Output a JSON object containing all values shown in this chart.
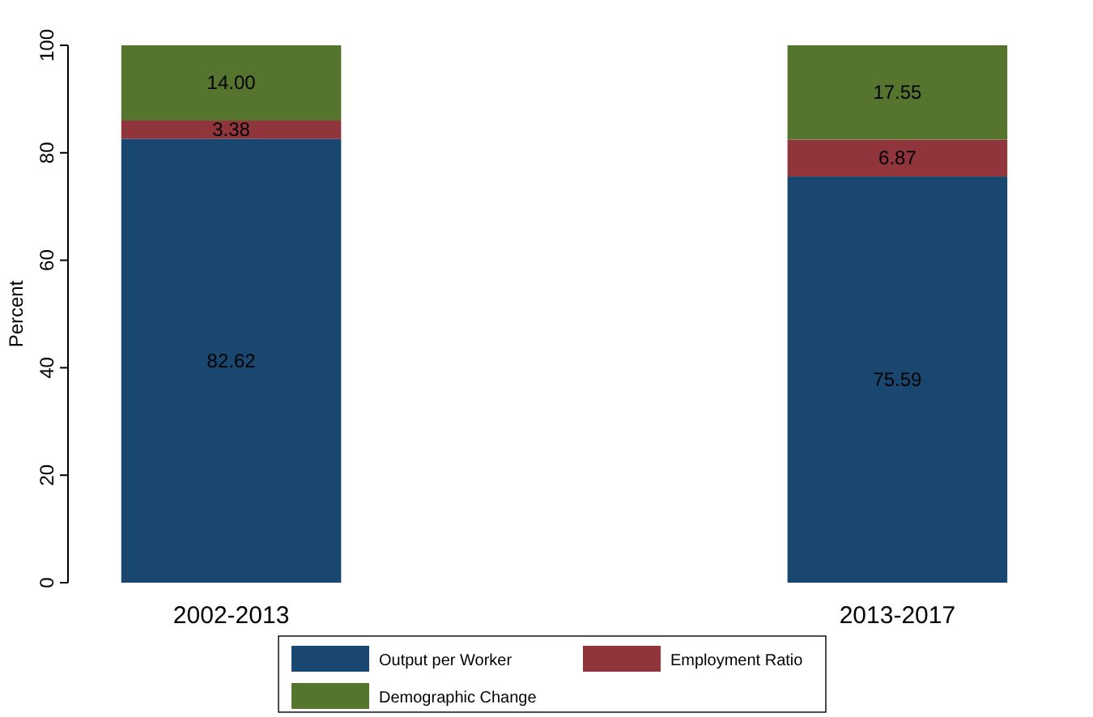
{
  "chart_data": {
    "type": "bar",
    "stacked": true,
    "ylabel": "Percent",
    "categories": [
      "2002-2013",
      "2013-2017"
    ],
    "series": [
      {
        "name": "Output per Worker",
        "color": "#1a476f",
        "values": [
          82.62,
          75.59
        ],
        "value_labels": [
          "82.62",
          "75.59"
        ]
      },
      {
        "name": "Employment Ratio",
        "color": "#90353b",
        "values": [
          3.38,
          6.87
        ],
        "value_labels": [
          "3.38",
          "6.87"
        ]
      },
      {
        "name": "Demographic Change",
        "color": "#55752f",
        "values": [
          14.0,
          17.55
        ],
        "value_labels": [
          "14.00",
          "17.55"
        ]
      }
    ],
    "ylim": [
      0,
      100
    ],
    "yticks": [
      0,
      20,
      40,
      60,
      80,
      100
    ],
    "legend": "bottom"
  }
}
